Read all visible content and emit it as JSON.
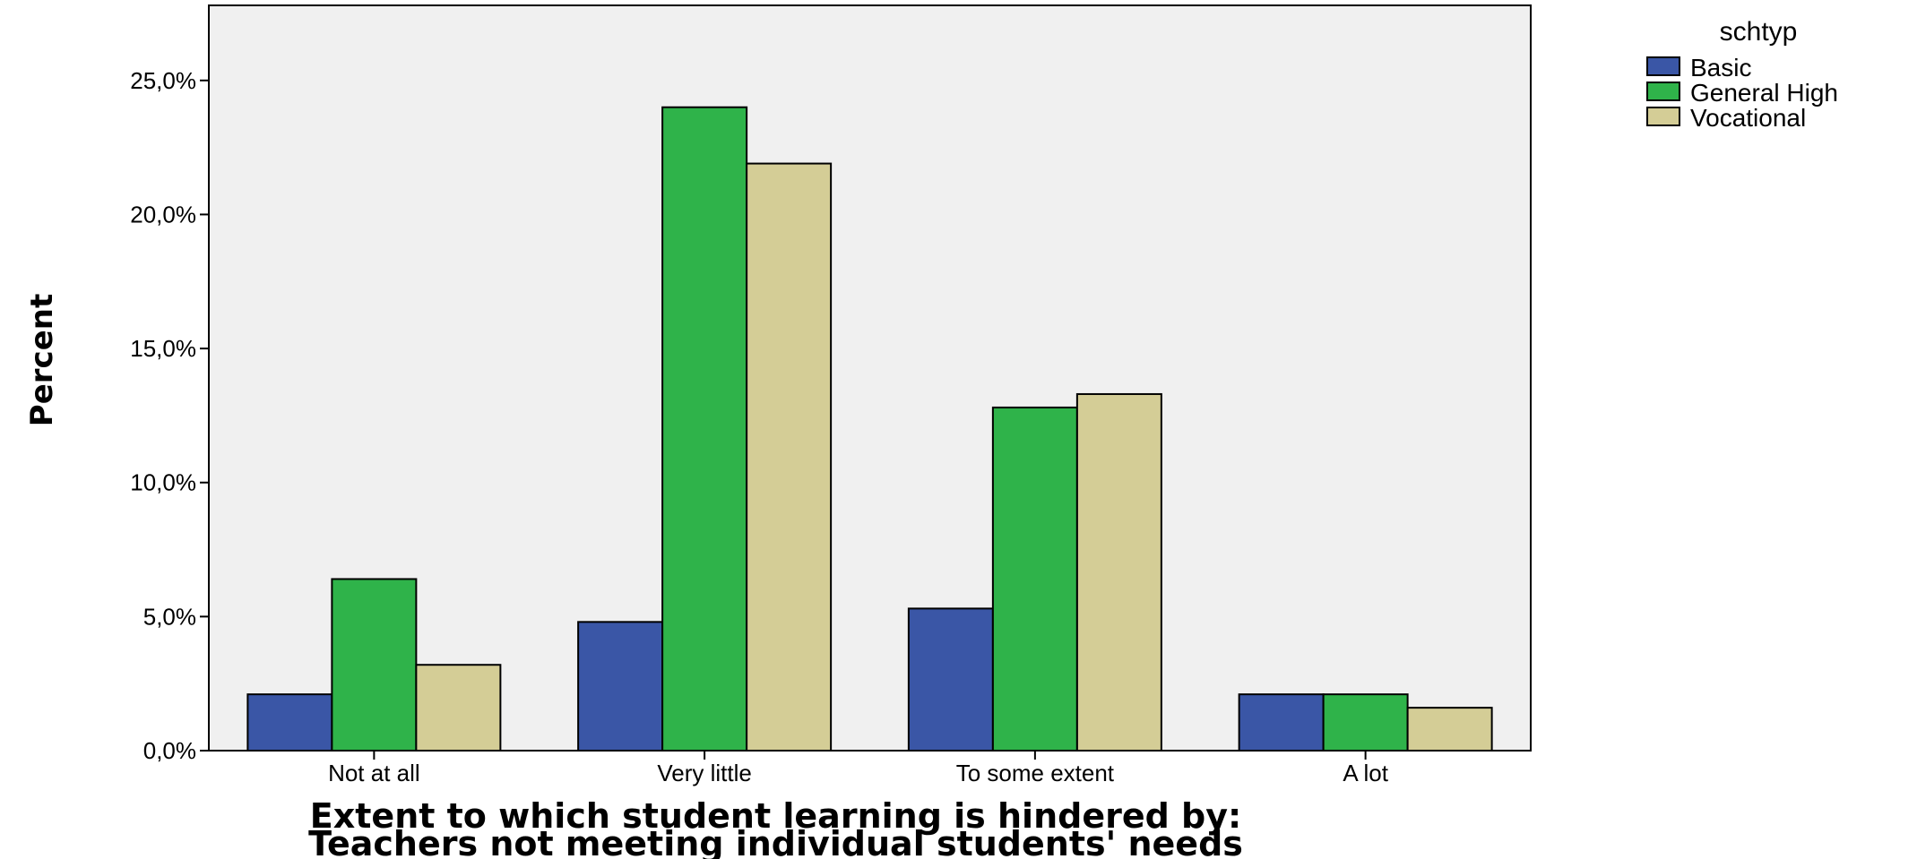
{
  "chart_data": {
    "type": "bar",
    "categories": [
      "Not at all",
      "Very little",
      "To some extent",
      "A lot"
    ],
    "series": [
      {
        "name": "Basic",
        "values": [
          2.1,
          4.8,
          5.3,
          2.1
        ],
        "color": "#3a56a6"
      },
      {
        "name": "General High",
        "values": [
          6.4,
          24.0,
          12.8,
          2.1
        ],
        "color": "#2fb34a"
      },
      {
        "name": "Vocational",
        "values": [
          3.2,
          21.9,
          13.3,
          1.6
        ],
        "color": "#d4cd96"
      }
    ],
    "ylabel": "Percent",
    "xlabel_lines": [
      "Extent to which student learning is hindered by:",
      "Teachers not meeting individual students' needs"
    ],
    "yticks": [
      "0,0%",
      "5,0%",
      "10,0%",
      "15,0%",
      "20,0%",
      "25,0%"
    ],
    "ytick_values": [
      0,
      5,
      10,
      15,
      20,
      25
    ],
    "ylim": [
      0,
      27.8
    ],
    "legend_title": "schtyp",
    "legend_position": "top-right",
    "plot_background": "#f0f0f0",
    "grid": false
  }
}
